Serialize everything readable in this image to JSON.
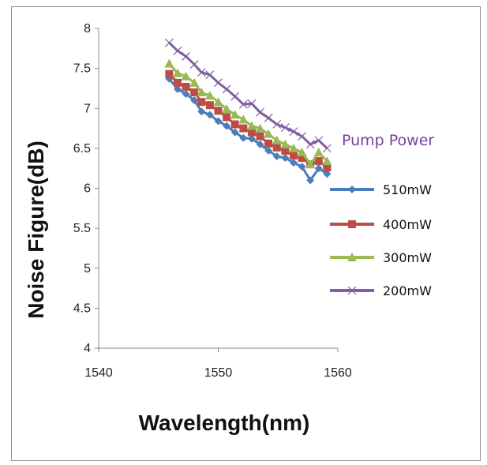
{
  "chart_data": {
    "type": "line",
    "xlabel": "Wavelength(nm)",
    "ylabel": "Noise Figure(dB)",
    "xlim": [
      1540,
      1560
    ],
    "ylim": [
      4,
      8
    ],
    "xticks": [
      1540,
      1550,
      1560
    ],
    "yticks": [
      4,
      4.5,
      5,
      5.5,
      6,
      6.5,
      7,
      7.5,
      8
    ],
    "grid": false,
    "legend_title": "Pump Power",
    "legend_position": "right",
    "x": [
      1545.9,
      1546.6,
      1547.3,
      1548.0,
      1548.6,
      1549.3,
      1550.0,
      1550.7,
      1551.4,
      1552.1,
      1552.8,
      1553.5,
      1554.2,
      1554.9,
      1555.6,
      1556.3,
      1557.0,
      1557.7,
      1558.4,
      1559.1
    ],
    "series": [
      {
        "name": "510mW",
        "color": "#4a7ebb",
        "marker": "diamond",
        "values": [
          7.37,
          7.24,
          7.18,
          7.1,
          6.96,
          6.92,
          6.84,
          6.78,
          6.7,
          6.63,
          6.62,
          6.55,
          6.47,
          6.4,
          6.38,
          6.32,
          6.27,
          6.1,
          6.25,
          6.18
        ]
      },
      {
        "name": "400mW",
        "color": "#be4b48",
        "marker": "square",
        "values": [
          7.43,
          7.32,
          7.27,
          7.2,
          7.08,
          7.04,
          6.97,
          6.89,
          6.8,
          6.75,
          6.7,
          6.65,
          6.56,
          6.51,
          6.47,
          6.41,
          6.38,
          6.3,
          6.34,
          6.26
        ]
      },
      {
        "name": "300mW",
        "color": "#98b954",
        "marker": "triangle",
        "values": [
          7.56,
          7.44,
          7.4,
          7.32,
          7.2,
          7.16,
          7.08,
          6.99,
          6.92,
          6.86,
          6.78,
          6.75,
          6.68,
          6.6,
          6.55,
          6.5,
          6.45,
          6.3,
          6.45,
          6.34
        ]
      },
      {
        "name": "200mW",
        "color": "#7d60a0",
        "marker": "x",
        "values": [
          7.82,
          7.72,
          7.65,
          7.55,
          7.45,
          7.42,
          7.32,
          7.24,
          7.15,
          7.05,
          7.06,
          6.95,
          6.88,
          6.8,
          6.76,
          6.71,
          6.65,
          6.55,
          6.6,
          6.5
        ]
      }
    ]
  }
}
